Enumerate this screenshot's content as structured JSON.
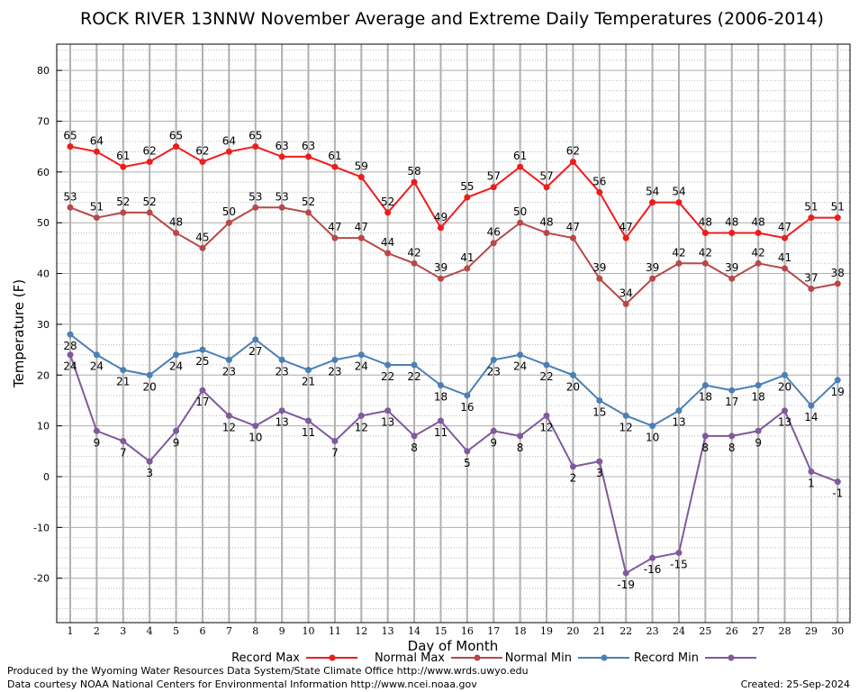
{
  "chart_data": {
    "type": "line",
    "title": "ROCK RIVER 13NNW November Average and Extreme Daily Temperatures (2006-2014)",
    "xlabel": "Day of Month",
    "ylabel": "Temperature (F)",
    "xlim": [
      1,
      30
    ],
    "ylim": [
      -30,
      85
    ],
    "yticks": [
      -20,
      -10,
      0,
      10,
      20,
      30,
      40,
      50,
      60,
      70,
      80
    ],
    "x": [
      1,
      2,
      3,
      4,
      5,
      6,
      7,
      8,
      9,
      10,
      11,
      12,
      13,
      14,
      15,
      16,
      17,
      18,
      19,
      20,
      21,
      22,
      23,
      24,
      25,
      26,
      27,
      28,
      29,
      30
    ],
    "grid": true,
    "legend_position": "bottom",
    "series": [
      {
        "name": "Record Max",
        "color": "#ee1c1c",
        "values": [
          65,
          64,
          61,
          62,
          65,
          62,
          64,
          65,
          63,
          63,
          61,
          59,
          52,
          58,
          49,
          55,
          57,
          61,
          57,
          62,
          56,
          47,
          54,
          54,
          48,
          48,
          48,
          47,
          51,
          51
        ]
      },
      {
        "name": "Normal Max",
        "color": "#b84848",
        "values": [
          53,
          51,
          52,
          52,
          48,
          45,
          50,
          53,
          53,
          52,
          47,
          47,
          44,
          42,
          39,
          41,
          46,
          50,
          48,
          47,
          39,
          34,
          39,
          42,
          42,
          39,
          42,
          41,
          37,
          38
        ]
      },
      {
        "name": "Normal Min",
        "color": "#4b7fb5",
        "values": [
          28,
          24,
          21,
          20,
          24,
          25,
          23,
          27,
          23,
          21,
          23,
          24,
          22,
          22,
          18,
          16,
          23,
          24,
          22,
          20,
          15,
          12,
          10,
          13,
          18,
          17,
          18,
          20,
          14,
          19
        ]
      },
      {
        "name": "Record Min",
        "color": "#7f5a9c",
        "values": [
          24,
          9,
          7,
          3,
          9,
          17,
          12,
          10,
          13,
          11,
          7,
          12,
          13,
          8,
          11,
          5,
          9,
          8,
          12,
          2,
          3,
          -19,
          -16,
          -15,
          8,
          8,
          9,
          13,
          1,
          -1
        ]
      }
    ]
  },
  "footer": {
    "produced_by": "Produced by the Wyoming Water Resources Data System/State Climate Office http://www.wrds.uwyo.edu",
    "courtesy": "Data courtesy NOAA National Centers for Environmental Information http://www.ncei.noaa.gov",
    "created": "Created:  25-Sep-2024"
  }
}
